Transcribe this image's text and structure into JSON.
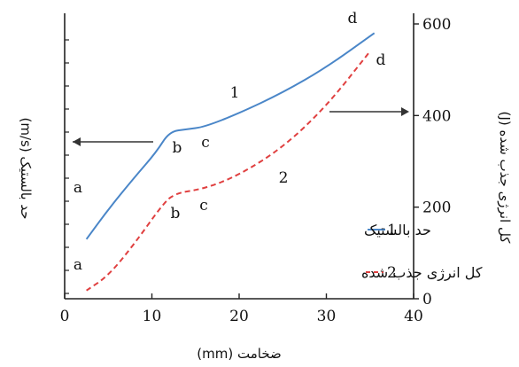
{
  "chart_data": {
    "type": "line",
    "xlabel": "ضخامت (mm)",
    "ylabel_left": "حد بالستیک (m/s)",
    "ylabel_right": "کل انرژی جذب شده (J)",
    "xlim": [
      0,
      40
    ],
    "x_ticks": [
      "0",
      "10",
      "20",
      "30",
      "40"
    ],
    "y2lim": [
      0,
      600
    ],
    "y2_ticks": [
      "0",
      "200",
      "400",
      "600"
    ],
    "series": [
      {
        "id": "1",
        "name": "حد بالستیک",
        "color": "#4a86c8",
        "style": "solid",
        "axis": "left",
        "x": [
          2.5,
          5,
          8,
          10.5,
          12,
          14,
          16,
          20,
          25,
          30,
          35.5
        ],
        "y2_equiv": [
          130,
          195,
          265,
          320,
          365,
          370,
          375,
          405,
          450,
          505,
          580
        ]
      },
      {
        "id": "2",
        "name": "کل انرژی جذب شده",
        "color": "#e04040",
        "style": "dashed",
        "axis": "right",
        "x": [
          2.5,
          5,
          8,
          11,
          12.5,
          16,
          20,
          25,
          30,
          35
        ],
        "y": [
          18,
          50,
          120,
          200,
          230,
          240,
          270,
          330,
          420,
          540
        ]
      }
    ],
    "point_labels": [
      "a",
      "b",
      "c",
      "d"
    ],
    "legend": {
      "placement": "bottom-right",
      "items": [
        {
          "num": "1",
          "text": "حد بالستیک"
        },
        {
          "num": "2",
          "text": "کل انرژی جذب شده"
        }
      ]
    },
    "arrows": [
      {
        "series": "1",
        "axis": "left"
      },
      {
        "series": "2",
        "axis": "right"
      }
    ]
  }
}
